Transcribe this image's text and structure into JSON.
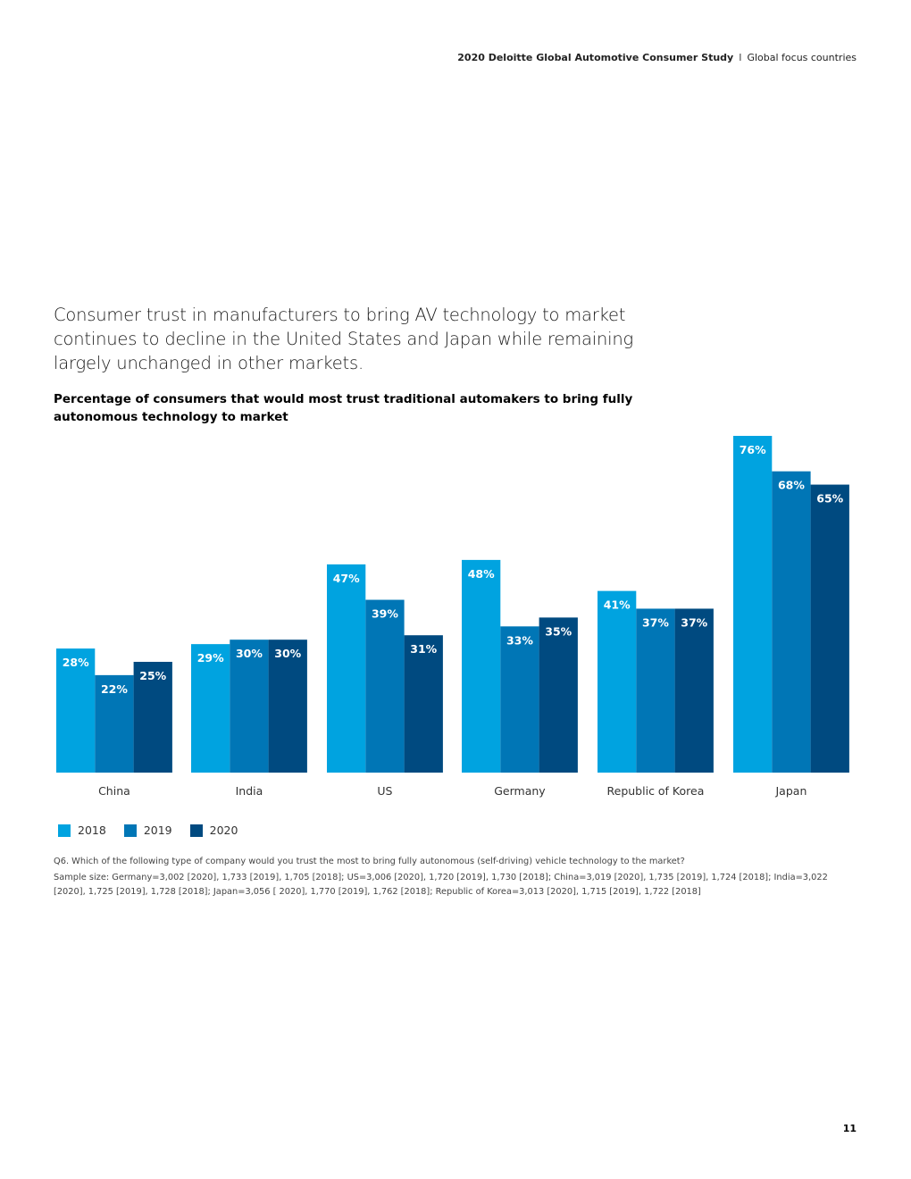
{
  "header": {
    "study": "2020 Deloitte Global Automotive Consumer Study",
    "separator": "I",
    "section": "Global focus countries"
  },
  "headline": "Consumer trust in manufacturers to bring AV technology to market continues to decline in the United States and Japan while remaining largely unchanged in other markets.",
  "chart_data": {
    "type": "bar",
    "title": "Percentage of consumers that would most trust traditional automakers to bring fully autonomous technology to market",
    "categories": [
      "China",
      "India",
      "US",
      "Germany",
      "Republic of Korea",
      "Japan"
    ],
    "series": [
      {
        "name": "2018",
        "color": "#00a3e0",
        "values": [
          28,
          29,
          47,
          48,
          41,
          76
        ],
        "labels": [
          "28%",
          "29%",
          "47%",
          "48%",
          "41%",
          "76%"
        ]
      },
      {
        "name": "2019",
        "color": "#0076b6",
        "values": [
          22,
          30,
          39,
          33,
          37,
          68
        ],
        "labels": [
          "22%",
          "30%",
          "39%",
          "33%",
          "37%",
          "68%"
        ]
      },
      {
        "name": "2020",
        "color": "#004a80",
        "values": [
          25,
          30,
          31,
          35,
          37,
          65
        ],
        "labels": [
          "25%",
          "30%",
          "31%",
          "35%",
          "37%",
          "65%"
        ]
      }
    ],
    "ylim": [
      0,
      76
    ],
    "grid": false,
    "legend_placement": "bottom-left"
  },
  "notes": {
    "question": "Q6. Which of the following type of company would you trust the most to bring fully autonomous (self-driving) vehicle technology to the market?",
    "sample": "Sample size: Germany=3,002 [2020], 1,733 [2019], 1,705 [2018]; US=3,006 [2020], 1,720 [2019], 1,730 [2018]; China=3,019 [2020], 1,735 [2019], 1,724 [2018]; India=3,022 [2020], 1,725 [2019], 1,728 [2018]; Japan=3,056 [ 2020], 1,770 [2019], 1,762 [2018]; Republic of Korea=3,013 [2020], 1,715 [2019], 1,722 [2018]"
  },
  "page_number": "11"
}
